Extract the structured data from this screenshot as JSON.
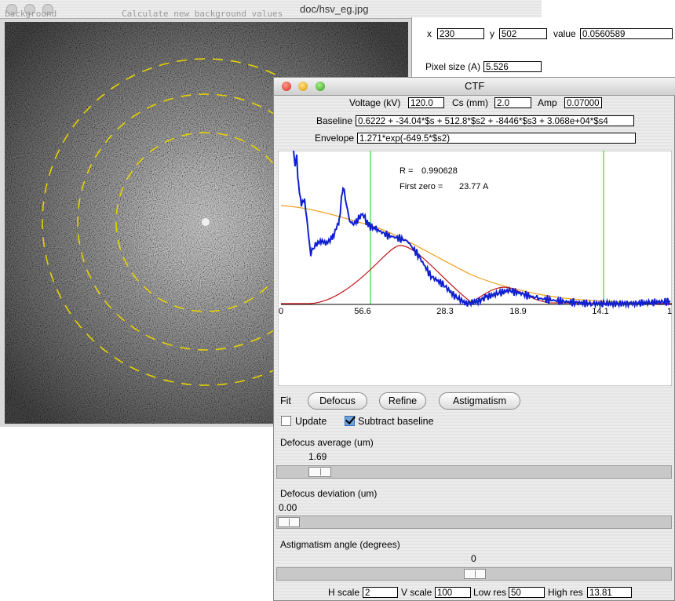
{
  "image_window": {
    "title": "doc/hsv_eg.jpg",
    "menu": [
      "background",
      "Calculate new background values"
    ]
  },
  "info_panel": {
    "x_label": "x",
    "x": "230",
    "y_label": "y",
    "y": "502",
    "value_label": "value",
    "value": "0.0560589",
    "pixel_size_label": "Pixel size (A)",
    "pixel_size": "5.526"
  },
  "ctf_window": {
    "title": "CTF",
    "voltage_label": "Voltage (kV)",
    "voltage": "120.0",
    "cs_label": "Cs (mm)",
    "cs": "2.0",
    "amp_label": "Amp",
    "amp": "0.07000",
    "baseline_label": "Baseline",
    "baseline": "0.6222 + -34.04*$s + 512.8*$s2 + -8446*$s3 + 3.068e+04*$s4",
    "envelope_label": "Envelope",
    "envelope": "1.271*exp(-649.5*$s2)",
    "plot": {
      "r_label": "R =",
      "r": "0.990628",
      "first_zero_label": "First zero =",
      "first_zero": "23.77 A",
      "x_labels": [
        "0",
        "56.6",
        "28.3",
        "18.9",
        "14.1",
        "1"
      ]
    },
    "fit_label": "Fit",
    "buttons": [
      "Defocus",
      "Refine",
      "Astigmatism"
    ],
    "checkboxes": [
      {
        "label": "Update",
        "checked": false
      },
      {
        "label": "Subtract baseline",
        "checked": true
      }
    ],
    "sliders": [
      {
        "label": "Defocus average (um)",
        "value": "1.69"
      },
      {
        "label": "Defocus deviation (um)",
        "value": "0.00"
      },
      {
        "label": "Astigmatism angle (degrees)",
        "value": "0"
      }
    ],
    "bottom_fields": [
      {
        "label": "H scale",
        "value": "2"
      },
      {
        "label": "V scale",
        "value": "100"
      },
      {
        "label": "Low res",
        "value": "50"
      },
      {
        "label": "High res",
        "value": "13.81"
      }
    ]
  }
}
